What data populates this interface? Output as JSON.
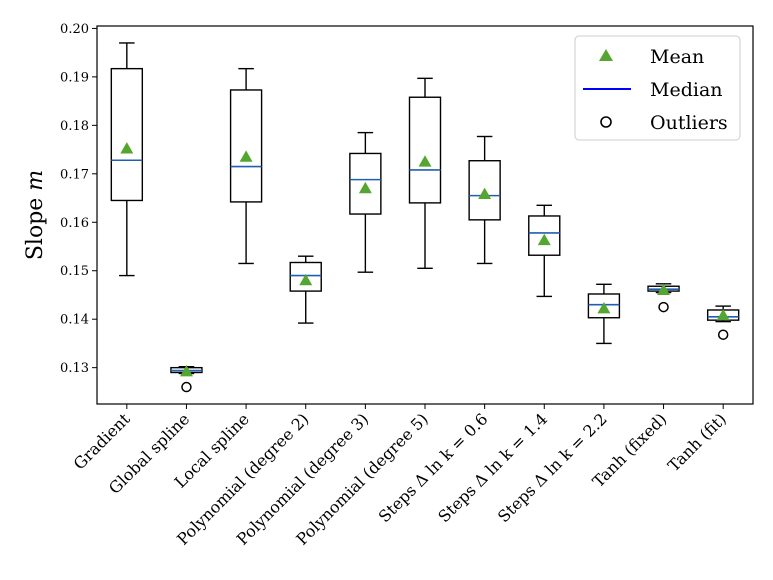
{
  "chart_data": {
    "type": "box",
    "ylabel": "Slope m",
    "ylim": [
      0.1225,
      0.2005
    ],
    "yticks": [
      "0.13",
      "0.14",
      "0.15",
      "0.16",
      "0.17",
      "0.18",
      "0.19",
      "0.20"
    ],
    "categories": [
      "Gradient",
      "Global spline",
      "Local spline",
      "Polynomial (degree 2)",
      "Polynomial (degree 3)",
      "Polynomial (degree 5)",
      "Steps Δ ln k = 0.6",
      "Steps Δ ln k = 1.4",
      "Steps Δ ln k = 2.2",
      "Tanh (fixed)",
      "Tanh (fit)"
    ],
    "boxes": [
      {
        "whisker_low": 0.149,
        "q1": 0.1645,
        "median": 0.1728,
        "q3": 0.1917,
        "whisker_high": 0.197,
        "mean": 0.1752,
        "outliers": []
      },
      {
        "whisker_low": 0.1288,
        "q1": 0.129,
        "median": 0.1294,
        "q3": 0.13,
        "whisker_high": 0.1302,
        "mean": 0.1292,
        "outliers": [
          0.126
        ]
      },
      {
        "whisker_low": 0.1515,
        "q1": 0.1642,
        "median": 0.1715,
        "q3": 0.1873,
        "whisker_high": 0.1917,
        "mean": 0.1735,
        "outliers": []
      },
      {
        "whisker_low": 0.1392,
        "q1": 0.1458,
        "median": 0.149,
        "q3": 0.1517,
        "whisker_high": 0.153,
        "mean": 0.148,
        "outliers": []
      },
      {
        "whisker_low": 0.1497,
        "q1": 0.1617,
        "median": 0.1688,
        "q3": 0.1742,
        "whisker_high": 0.1785,
        "mean": 0.167,
        "outliers": []
      },
      {
        "whisker_low": 0.1505,
        "q1": 0.164,
        "median": 0.1708,
        "q3": 0.1858,
        "whisker_high": 0.1897,
        "mean": 0.1725,
        "outliers": []
      },
      {
        "whisker_low": 0.1515,
        "q1": 0.1605,
        "median": 0.1655,
        "q3": 0.1727,
        "whisker_high": 0.1777,
        "mean": 0.1658,
        "outliers": []
      },
      {
        "whisker_low": 0.1447,
        "q1": 0.1532,
        "median": 0.1578,
        "q3": 0.1613,
        "whisker_high": 0.1635,
        "mean": 0.1563,
        "outliers": []
      },
      {
        "whisker_low": 0.135,
        "q1": 0.1403,
        "median": 0.143,
        "q3": 0.1452,
        "whisker_high": 0.1472,
        "mean": 0.1422,
        "outliers": []
      },
      {
        "whisker_low": 0.1455,
        "q1": 0.1458,
        "median": 0.1462,
        "q3": 0.1468,
        "whisker_high": 0.1473,
        "mean": 0.146,
        "outliers": [
          0.1425
        ]
      },
      {
        "whisker_low": 0.1395,
        "q1": 0.1398,
        "median": 0.1405,
        "q3": 0.1419,
        "whisker_high": 0.1427,
        "mean": 0.1408,
        "outliers": [
          0.1368
        ]
      }
    ],
    "legend": {
      "placement": "top-right",
      "entries": [
        {
          "label": "Mean",
          "marker": "triangle"
        },
        {
          "label": "Median",
          "marker": "line"
        },
        {
          "label": "Outliers",
          "marker": "circle"
        }
      ]
    },
    "colors": {
      "mean": "#55a630",
      "median": "#1f5fb4",
      "legend_median": "#0000ff",
      "box": "#000000"
    },
    "grid": false
  }
}
